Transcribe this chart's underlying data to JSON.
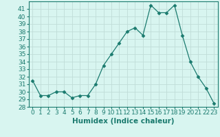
{
  "x": [
    0,
    1,
    2,
    3,
    4,
    5,
    6,
    7,
    8,
    9,
    10,
    11,
    12,
    13,
    14,
    15,
    16,
    17,
    18,
    19,
    20,
    21,
    22,
    23
  ],
  "y": [
    31.5,
    29.5,
    29.5,
    30.0,
    30.0,
    29.2,
    29.5,
    29.5,
    31.0,
    33.5,
    35.0,
    36.5,
    38.0,
    38.5,
    37.5,
    41.5,
    40.5,
    40.5,
    41.5,
    37.5,
    34.0,
    32.0,
    30.5,
    28.5
  ],
  "line_color": "#1a7a6e",
  "marker": "D",
  "marker_size": 2.5,
  "bg_color": "#d8f5f0",
  "grid_color": "#c0ddd8",
  "xlabel": "Humidex (Indice chaleur)",
  "xlim": [
    -0.5,
    23.5
  ],
  "ylim": [
    28,
    42
  ],
  "yticks": [
    28,
    29,
    30,
    31,
    32,
    33,
    34,
    35,
    36,
    37,
    38,
    39,
    40,
    41
  ],
  "xticks": [
    0,
    1,
    2,
    3,
    4,
    5,
    6,
    7,
    8,
    9,
    10,
    11,
    12,
    13,
    14,
    15,
    16,
    17,
    18,
    19,
    20,
    21,
    22,
    23
  ],
  "tick_fontsize": 6.5,
  "xlabel_fontsize": 7.5
}
